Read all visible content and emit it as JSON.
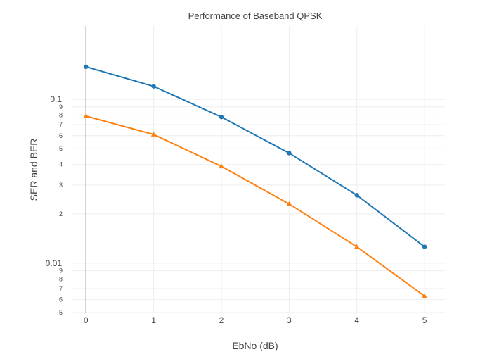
{
  "chart_data": {
    "type": "line",
    "title": "Performance of Baseband QPSK",
    "xlabel": "EbNo (dB)",
    "ylabel": "SER and BER",
    "xlim": [
      -0.2,
      5.3
    ],
    "ylim": [
      0.005,
      0.28
    ],
    "yscale": "log",
    "grid": true,
    "x_ticks": [
      0,
      1,
      2,
      3,
      4,
      5
    ],
    "x_tick_labels": [
      "0",
      "1",
      "2",
      "3",
      "4",
      "5"
    ],
    "y_major_ticks": [
      0.01,
      0.1
    ],
    "y_major_tick_labels": [
      "0.01",
      "0.1"
    ],
    "y_minor_ticks": [
      0.005,
      0.006,
      0.007,
      0.008,
      0.009,
      0.02,
      0.03,
      0.04,
      0.05,
      0.06,
      0.07,
      0.08,
      0.09
    ],
    "y_minor_tick_labels": [
      "5",
      "6",
      "7",
      "8",
      "9",
      "2",
      "3",
      "4",
      "5",
      "6",
      "7",
      "8",
      "9"
    ],
    "x": [
      0,
      1,
      2,
      3,
      4,
      5
    ],
    "series": [
      {
        "values": [
          0.158,
          0.12,
          0.078,
          0.047,
          0.026,
          0.0126
        ],
        "color": "#1f77b4",
        "marker": "circle"
      },
      {
        "values": [
          0.079,
          0.061,
          0.039,
          0.023,
          0.0126,
          0.0063
        ],
        "color": "#ff7f0e",
        "marker": "triangle-up"
      }
    ]
  }
}
